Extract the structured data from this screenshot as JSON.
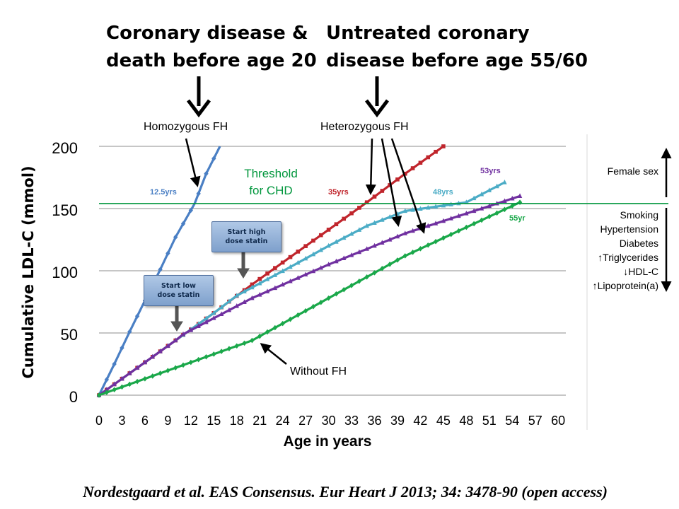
{
  "headings": {
    "left": [
      "Coronary disease &",
      "death before age 20"
    ],
    "right": [
      "Untreated coronary",
      "disease before age 55/60"
    ]
  },
  "labels": {
    "homozygous": "Homozygous FH",
    "heterozygous": "Heterozygous FH",
    "threshold": [
      "Threshold",
      "for CHD"
    ],
    "without_fh": "Without FH"
  },
  "buttons": {
    "start_low": [
      "Start low",
      "dose statin"
    ],
    "start_high": [
      "Start high",
      "dose statin"
    ]
  },
  "risk_factors": {
    "up": "Female sex",
    "down": [
      "Smoking",
      "Hypertension",
      "Diabetes",
      "↑Triglycerides",
      "↓HDL-C",
      "↑Lipoprotein(a)"
    ]
  },
  "citation": "Nordestgaard et al. EAS Consensus. Eur Heart J 2013; 34: 3478-90 (open access)",
  "chart_data": {
    "type": "line",
    "xlabel": "Age in years",
    "ylabel": "Cumulative LDL-C (mmol)",
    "xlim": [
      0,
      61
    ],
    "ylim": [
      0,
      200
    ],
    "xticks": [
      0,
      3,
      6,
      9,
      12,
      15,
      18,
      21,
      24,
      27,
      30,
      33,
      36,
      39,
      42,
      45,
      48,
      51,
      54,
      57,
      60
    ],
    "yticks": [
      0,
      50,
      100,
      150,
      200
    ],
    "threshold": 154,
    "series": [
      {
        "key": "homozygous",
        "color": "#4a7fc4",
        "marker": "diamond",
        "points": [
          [
            0,
            0
          ],
          [
            2,
            25
          ],
          [
            4,
            51
          ],
          [
            6,
            76
          ],
          [
            8,
            101
          ],
          [
            10,
            127
          ],
          [
            12.5,
            154
          ],
          [
            14,
            178
          ],
          [
            15.8,
            200
          ]
        ]
      },
      {
        "key": "heterozygous_untreated",
        "color": "#c0252c",
        "marker": "square",
        "points": [
          [
            0,
            0
          ],
          [
            5,
            22
          ],
          [
            10,
            44
          ],
          [
            15,
            66
          ],
          [
            20,
            89
          ],
          [
            25,
            111
          ],
          [
            30,
            133
          ],
          [
            35,
            155
          ],
          [
            40,
            178
          ],
          [
            45,
            200
          ]
        ]
      },
      {
        "key": "heterozygous_high_dose",
        "color": "#4bacc6",
        "marker": "triangle",
        "points": [
          [
            0,
            0
          ],
          [
            5,
            22
          ],
          [
            10,
            44
          ],
          [
            15,
            66
          ],
          [
            18,
            80
          ],
          [
            25,
            103
          ],
          [
            30,
            120
          ],
          [
            35,
            136
          ],
          [
            40,
            148
          ],
          [
            48,
            155
          ],
          [
            53,
            171
          ]
        ]
      },
      {
        "key": "heterozygous_low_dose",
        "color": "#7030a0",
        "marker": "triangle",
        "points": [
          [
            0,
            0
          ],
          [
            5,
            22
          ],
          [
            10,
            44
          ],
          [
            11,
            49
          ],
          [
            20,
            78
          ],
          [
            30,
            105
          ],
          [
            40,
            130
          ],
          [
            50,
            150
          ],
          [
            55,
            160
          ]
        ]
      },
      {
        "key": "without_fh",
        "color": "#1aa84a",
        "marker": "diamond",
        "points": [
          [
            0,
            0
          ],
          [
            10,
            22
          ],
          [
            20,
            44
          ],
          [
            30,
            78
          ],
          [
            40,
            112
          ],
          [
            55,
            155
          ]
        ]
      }
    ],
    "annotations": [
      {
        "text": "12.5yrs",
        "color": "#4a7fc4"
      },
      {
        "text": "35yrs",
        "color": "#c0252c"
      },
      {
        "text": "53yrs",
        "color": "#7030a0"
      },
      {
        "text": "48yrs",
        "color": "#4bacc6"
      },
      {
        "text": "55yr",
        "color": "#1aa84a"
      }
    ]
  }
}
